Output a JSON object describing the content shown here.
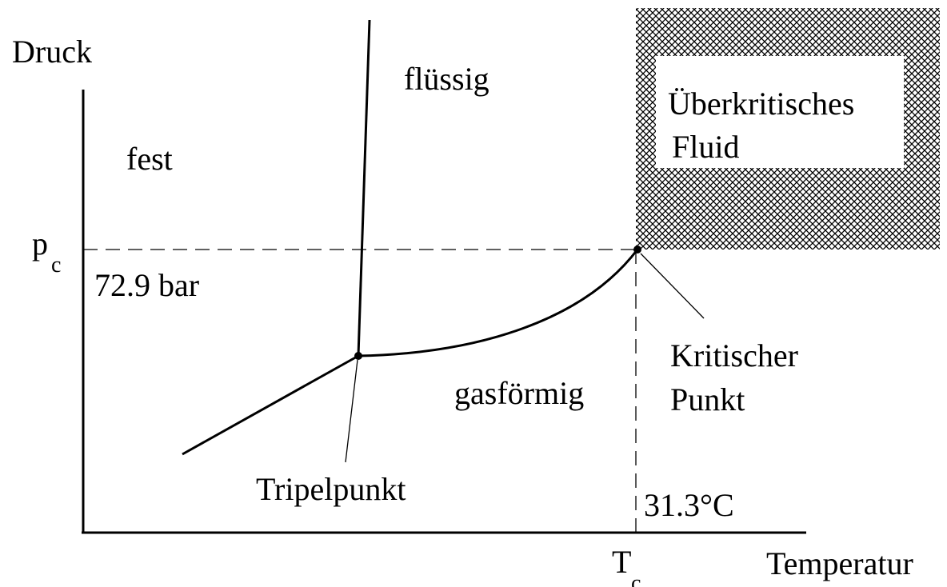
{
  "axes": {
    "y_label": "Druck",
    "x_label": "Temperatur"
  },
  "regions": {
    "solid": "fest",
    "liquid": "flüssig",
    "gas": "gasförmig",
    "supercritical": [
      "Überkritisches",
      "Fluid"
    ]
  },
  "points": {
    "triple": "Tripelpunkt",
    "critical": [
      "Kritischer",
      "Punkt"
    ]
  },
  "critical_pressure": {
    "symbol": "p",
    "subscript": "c",
    "value": "72.9 bar"
  },
  "critical_temperature": {
    "symbol": "T",
    "subscript": "c",
    "value": "31.3°C"
  }
}
